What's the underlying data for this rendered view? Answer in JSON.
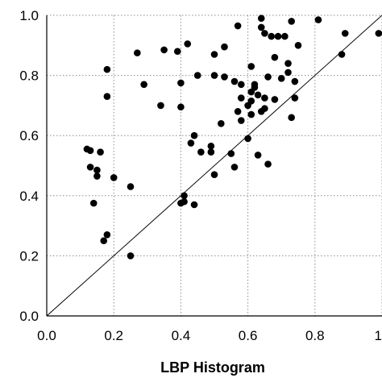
{
  "chart_data": {
    "type": "scatter",
    "xlabel": "LBP Histogram",
    "ylabel": "",
    "xlim": [
      0,
      1
    ],
    "ylim": [
      0,
      1
    ],
    "x_ticks": [
      "0.0",
      "0.2",
      "0.4",
      "0.6",
      "0.8",
      "1"
    ],
    "y_ticks": [
      "0.0",
      "0.2",
      "0.4",
      "0.6",
      "0.8",
      "1.0"
    ],
    "grid": true,
    "grid_style": "dotted",
    "reference_line": {
      "from": [
        0,
        0
      ],
      "to": [
        1,
        1
      ]
    },
    "marker_color": "#000000",
    "points": [
      [
        0.12,
        0.555
      ],
      [
        0.13,
        0.55
      ],
      [
        0.13,
        0.495
      ],
      [
        0.14,
        0.375
      ],
      [
        0.15,
        0.485
      ],
      [
        0.15,
        0.465
      ],
      [
        0.16,
        0.545
      ],
      [
        0.17,
        0.25
      ],
      [
        0.18,
        0.27
      ],
      [
        0.18,
        0.82
      ],
      [
        0.18,
        0.73
      ],
      [
        0.2,
        0.46
      ],
      [
        0.25,
        0.43
      ],
      [
        0.25,
        0.2
      ],
      [
        0.27,
        0.875
      ],
      [
        0.29,
        0.77
      ],
      [
        0.34,
        0.7
      ],
      [
        0.35,
        0.885
      ],
      [
        0.39,
        0.88
      ],
      [
        0.4,
        0.775
      ],
      [
        0.4,
        0.695
      ],
      [
        0.4,
        0.375
      ],
      [
        0.41,
        0.4
      ],
      [
        0.41,
        0.38
      ],
      [
        0.42,
        0.905
      ],
      [
        0.43,
        0.575
      ],
      [
        0.44,
        0.6
      ],
      [
        0.44,
        0.37
      ],
      [
        0.45,
        0.8
      ],
      [
        0.46,
        0.545
      ],
      [
        0.49,
        0.545
      ],
      [
        0.49,
        0.565
      ],
      [
        0.5,
        0.87
      ],
      [
        0.5,
        0.8
      ],
      [
        0.5,
        0.47
      ],
      [
        0.52,
        0.64
      ],
      [
        0.53,
        0.795
      ],
      [
        0.53,
        0.895
      ],
      [
        0.55,
        0.54
      ],
      [
        0.56,
        0.78
      ],
      [
        0.56,
        0.495
      ],
      [
        0.57,
        0.965
      ],
      [
        0.57,
        0.68
      ],
      [
        0.58,
        0.77
      ],
      [
        0.58,
        0.725
      ],
      [
        0.58,
        0.65
      ],
      [
        0.6,
        0.59
      ],
      [
        0.6,
        0.7
      ],
      [
        0.61,
        0.83
      ],
      [
        0.61,
        0.745
      ],
      [
        0.61,
        0.715
      ],
      [
        0.61,
        0.67
      ],
      [
        0.62,
        0.77
      ],
      [
        0.62,
        0.76
      ],
      [
        0.63,
        0.735
      ],
      [
        0.63,
        0.535
      ],
      [
        0.64,
        0.99
      ],
      [
        0.64,
        0.96
      ],
      [
        0.64,
        0.68
      ],
      [
        0.65,
        0.94
      ],
      [
        0.65,
        0.69
      ],
      [
        0.65,
        0.725
      ],
      [
        0.66,
        0.795
      ],
      [
        0.66,
        0.505
      ],
      [
        0.67,
        0.93
      ],
      [
        0.68,
        0.86
      ],
      [
        0.68,
        0.72
      ],
      [
        0.69,
        0.93
      ],
      [
        0.7,
        0.79
      ],
      [
        0.71,
        0.93
      ],
      [
        0.72,
        0.84
      ],
      [
        0.72,
        0.81
      ],
      [
        0.73,
        0.98
      ],
      [
        0.73,
        0.66
      ],
      [
        0.74,
        0.725
      ],
      [
        0.74,
        0.78
      ],
      [
        0.75,
        0.9
      ],
      [
        0.81,
        0.985
      ],
      [
        0.88,
        0.87
      ],
      [
        0.89,
        0.94
      ],
      [
        0.99,
        0.94
      ]
    ]
  }
}
